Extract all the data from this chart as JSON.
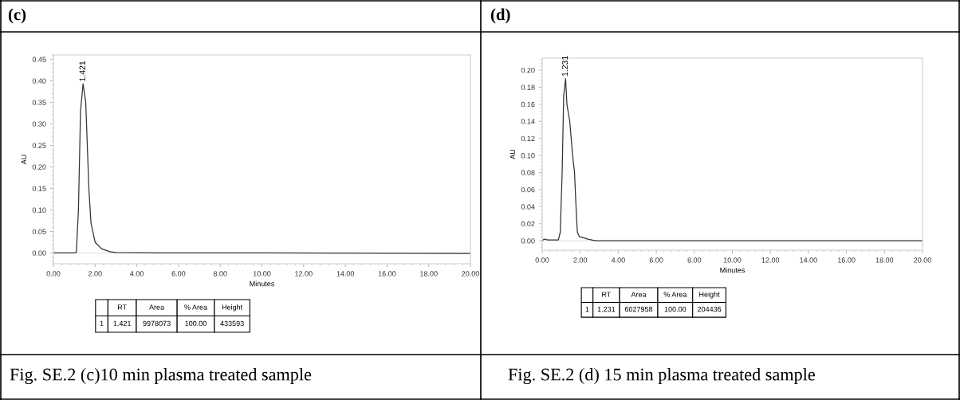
{
  "chart_data": [
    {
      "type": "line",
      "title": "(c)",
      "xlabel": "Minutes",
      "ylabel": "AU",
      "x": [
        0,
        1.0,
        1.1,
        1.2,
        1.3,
        1.421,
        1.55,
        1.7,
        1.8,
        2.0,
        2.3,
        2.7,
        3.0,
        5.0,
        10.0,
        20.0
      ],
      "series": [
        {
          "color": "#333333",
          "values": [
            0,
            0,
            0.002,
            0.1,
            0.33,
            0.393,
            0.35,
            0.15,
            0.07,
            0.025,
            0.01,
            0.003,
            0.001,
            0,
            0,
            -0.001
          ]
        }
      ],
      "ref_lines": [
        {
          "axis": "y",
          "value": 0,
          "color": "#cccccc"
        }
      ],
      "xlim": [
        0,
        20
      ],
      "xticks": [
        {
          "value": 0,
          "label": "0.00"
        },
        {
          "value": 2,
          "label": "2.00"
        },
        {
          "value": 4,
          "label": "4.00"
        },
        {
          "value": 6,
          "label": "6.00"
        },
        {
          "value": 8,
          "label": "8.00"
        },
        {
          "value": 10,
          "label": "10.00"
        },
        {
          "value": 12,
          "label": "12.00"
        },
        {
          "value": 14,
          "label": "14.00"
        },
        {
          "value": 16,
          "label": "16.00"
        },
        {
          "value": 18,
          "label": "18.00"
        },
        {
          "value": 20,
          "label": "20.00"
        }
      ],
      "ylim": [
        -0.025,
        0.46
      ],
      "yticks": [
        {
          "value": 0,
          "label": "0.00"
        },
        {
          "value": 0.05,
          "label": "0.05"
        },
        {
          "value": 0.1,
          "label": "0.10"
        },
        {
          "value": 0.15,
          "label": "0.15"
        },
        {
          "value": 0.2,
          "label": "0.20"
        },
        {
          "value": 0.25,
          "label": "0.25"
        },
        {
          "value": 0.3,
          "label": "0.30"
        },
        {
          "value": 0.35,
          "label": "0.35"
        },
        {
          "value": 0.4,
          "label": "0.40"
        },
        {
          "value": 0.45,
          "label": "0.45"
        }
      ],
      "grid": false,
      "legend": false,
      "annotations": [
        {
          "text": "1.421",
          "x": 1.421,
          "y": 0.393
        },
        "RT",
        "Area",
        "% Area",
        "Height",
        "1",
        "1.421",
        "9978073",
        "100.00",
        "433593",
        "Fig. SE.2 (c)10 min plasma treated sample"
      ]
    },
    {
      "type": "line",
      "title": "(d)",
      "xlabel": "Minutes",
      "ylabel": "AU",
      "x": [
        0,
        0.1,
        0.3,
        0.85,
        0.95,
        1.05,
        1.13,
        1.231,
        1.3,
        1.45,
        1.6,
        1.7,
        1.8,
        1.85,
        1.95,
        2.1,
        2.4,
        2.8,
        4.0,
        20.0
      ],
      "series": [
        {
          "color": "#333333",
          "values": [
            0,
            0.002,
            0.001,
            0.001,
            0.01,
            0.08,
            0.17,
            0.19,
            0.16,
            0.14,
            0.1,
            0.08,
            0.03,
            0.01,
            0.005,
            0.004,
            0.002,
            0,
            0,
            0
          ]
        }
      ],
      "ref_lines": [
        {
          "axis": "y",
          "value": 0,
          "color": "#cccccc"
        }
      ],
      "xlim": [
        0,
        20
      ],
      "xticks": [
        {
          "value": 0,
          "label": "0.00"
        },
        {
          "value": 2,
          "label": "2.00"
        },
        {
          "value": 4,
          "label": "4.00"
        },
        {
          "value": 6,
          "label": "6.00"
        },
        {
          "value": 8,
          "label": "8.00"
        },
        {
          "value": 10,
          "label": "10.00"
        },
        {
          "value": 12,
          "label": "12.00"
        },
        {
          "value": 14,
          "label": "14.00"
        },
        {
          "value": 16,
          "label": "16.00"
        },
        {
          "value": 18,
          "label": "18.00"
        },
        {
          "value": 20,
          "label": "20.00"
        }
      ],
      "ylim": [
        -0.011,
        0.214
      ],
      "yticks": [
        {
          "value": 0,
          "label": "0.00"
        },
        {
          "value": 0.02,
          "label": "0.02"
        },
        {
          "value": 0.04,
          "label": "0.04"
        },
        {
          "value": 0.06,
          "label": "0.06"
        },
        {
          "value": 0.08,
          "label": "0.08"
        },
        {
          "value": 0.1,
          "label": "0.10"
        },
        {
          "value": 0.12,
          "label": "0.12"
        },
        {
          "value": 0.14,
          "label": "0.14"
        },
        {
          "value": 0.16,
          "label": "0.16"
        },
        {
          "value": 0.18,
          "label": "0.18"
        },
        {
          "value": 0.2,
          "label": "0.20"
        }
      ],
      "grid": false,
      "legend": false,
      "annotations": [
        {
          "text": "1.231",
          "x": 1.231,
          "y": 0.19
        },
        "RT",
        "Area",
        "% Area",
        "Height",
        "1",
        "1.231",
        "6027958",
        "100.00",
        "204436",
        "Fig. SE.2 (d) 15 min plasma treated sample"
      ]
    }
  ]
}
